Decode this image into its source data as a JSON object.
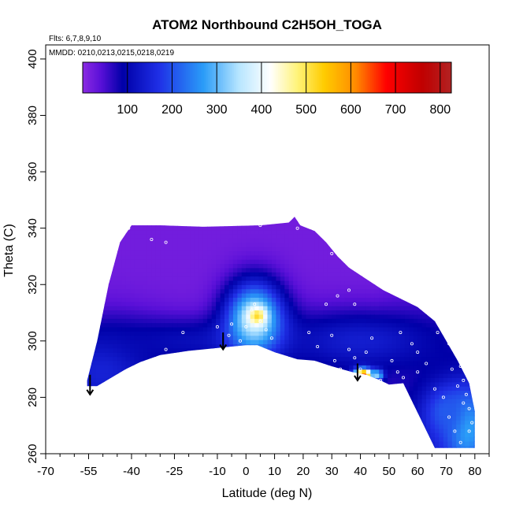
{
  "chart_data": {
    "type": "heatmap",
    "title": "ATOM2 Northbound C2H5OH_TOGA",
    "annotations": {
      "flights": "Flts: 6,7,8,9,10",
      "dates": "MMDD: 0210,0213,0215,0218,0219"
    },
    "xlabel": "Latitude (deg N)",
    "ylabel": "Theta (C)",
    "xlim": [
      -70,
      85
    ],
    "ylim": [
      260,
      405
    ],
    "x_ticks": [
      -70,
      -55,
      -40,
      -25,
      -10,
      0,
      10,
      20,
      30,
      40,
      50,
      60,
      70,
      80
    ],
    "x_tick_labels": [
      "-70",
      "-55",
      "-40",
      "-25",
      "-10",
      "0",
      "10",
      "20",
      "30",
      "40",
      "50",
      "60",
      "70",
      "80"
    ],
    "x_minor_ticks": [
      -65,
      -60,
      -50,
      -45,
      -35,
      -30,
      -20,
      -15,
      -5,
      5,
      15,
      25,
      35,
      45,
      55,
      65,
      75,
      85
    ],
    "y_ticks": [
      260,
      280,
      300,
      320,
      340,
      360,
      380,
      400
    ],
    "y_tick_labels": [
      "260",
      "280",
      "300",
      "320",
      "340",
      "360",
      "380",
      "400"
    ],
    "colorbar": {
      "ticks": [
        100,
        200,
        300,
        400,
        500,
        600,
        700,
        800
      ],
      "tick_labels": [
        "100",
        "200",
        "300",
        "400",
        "500",
        "600",
        "700",
        "800"
      ],
      "range": [
        0,
        825
      ],
      "stops": [
        {
          "v": 0,
          "c": "#8a2be2"
        },
        {
          "v": 40,
          "c": "#5a10d8"
        },
        {
          "v": 90,
          "c": "#0000a8"
        },
        {
          "v": 170,
          "c": "#1f2fe6"
        },
        {
          "v": 270,
          "c": "#2a9cf8"
        },
        {
          "v": 350,
          "c": "#b8e6ff"
        },
        {
          "v": 420,
          "c": "#ffffff"
        },
        {
          "v": 480,
          "c": "#fff37a"
        },
        {
          "v": 540,
          "c": "#ffcc00"
        },
        {
          "v": 610,
          "c": "#ff8c00"
        },
        {
          "v": 680,
          "c": "#ff0000"
        },
        {
          "v": 760,
          "c": "#c00000"
        },
        {
          "v": 825,
          "c": "#b22222"
        }
      ]
    },
    "data_region_outline": [
      [
        -55.5,
        284
      ],
      [
        -52,
        284
      ],
      [
        -47,
        287
      ],
      [
        -42,
        290
      ],
      [
        -37,
        292.5
      ],
      [
        -30,
        295
      ],
      [
        -20,
        296.5
      ],
      [
        -10,
        297.5
      ],
      [
        0,
        298.5
      ],
      [
        4,
        298.5
      ],
      [
        10,
        296
      ],
      [
        18,
        293.5
      ],
      [
        24,
        293
      ],
      [
        30,
        291
      ],
      [
        37,
        289
      ],
      [
        42,
        288
      ],
      [
        47,
        286
      ],
      [
        50,
        284.5
      ],
      [
        55,
        285
      ],
      [
        66,
        262
      ],
      [
        72,
        262
      ],
      [
        80,
        262
      ],
      [
        80,
        275
      ],
      [
        78,
        285
      ],
      [
        74,
        293
      ],
      [
        70,
        300
      ],
      [
        66,
        307
      ],
      [
        60,
        312
      ],
      [
        54,
        315
      ],
      [
        48,
        318
      ],
      [
        42,
        322
      ],
      [
        36,
        326
      ],
      [
        32,
        330
      ],
      [
        28,
        335
      ],
      [
        24,
        339
      ],
      [
        19,
        341
      ],
      [
        17,
        344
      ],
      [
        15,
        342
      ],
      [
        5,
        341
      ],
      [
        -15,
        340.5
      ],
      [
        -30,
        341
      ],
      [
        -40,
        341
      ],
      [
        -42,
        338
      ],
      [
        -44,
        335
      ],
      [
        -48,
        320
      ],
      [
        -52,
        300
      ],
      [
        -55.5,
        286
      ]
    ],
    "field": [
      {
        "lat": 0,
        "theta": 322,
        "value": 20,
        "sx": 60,
        "sy": 25
      },
      {
        "lat": -50,
        "theta": 290,
        "value": 150,
        "sx": 14,
        "sy": 12
      },
      {
        "lat": -20,
        "theta": 300,
        "value": 110,
        "sx": 22,
        "sy": 6
      },
      {
        "lat": 40,
        "theta": 300,
        "value": 140,
        "sx": 22,
        "sy": 8
      },
      {
        "lat": 3,
        "theta": 308,
        "value": 380,
        "sx": 7,
        "sy": 9
      },
      {
        "lat": 4,
        "theta": 309,
        "value": 520,
        "sx": 2,
        "sy": 2
      },
      {
        "lat": 41,
        "theta": 288,
        "value": 700,
        "sx": 2.2,
        "sy": 1.6
      },
      {
        "lat": 46,
        "theta": 288,
        "value": 330,
        "sx": 1.5,
        "sy": 1.4
      },
      {
        "lat": 77,
        "theta": 270,
        "value": 300,
        "sx": 5,
        "sy": 9
      },
      {
        "lat": 70,
        "theta": 275,
        "value": 210,
        "sx": 6,
        "sy": 7
      }
    ],
    "arrows": [
      {
        "lat": -54.5,
        "theta_top": 288,
        "theta_bottom": 281
      },
      {
        "lat": -8,
        "theta_top": 303,
        "theta_bottom": 297
      },
      {
        "lat": 39,
        "theta_top": 292,
        "theta_bottom": 286
      }
    ],
    "sample_points": [
      [
        -43,
        341
      ],
      [
        -41,
        340
      ],
      [
        -45,
        337
      ],
      [
        -33,
        336
      ],
      [
        -28,
        335
      ],
      [
        -28,
        297
      ],
      [
        -22,
        303
      ],
      [
        -10,
        305
      ],
      [
        -6,
        302
      ],
      [
        -5,
        306
      ],
      [
        -2,
        300
      ],
      [
        0,
        305
      ],
      [
        2,
        311
      ],
      [
        3,
        313
      ],
      [
        5,
        307
      ],
      [
        7,
        304
      ],
      [
        9,
        301
      ],
      [
        5,
        341
      ],
      [
        18,
        340
      ],
      [
        19,
        342
      ],
      [
        23,
        341
      ],
      [
        0,
        342
      ],
      [
        30,
        331
      ],
      [
        35,
        336
      ],
      [
        38,
        328
      ],
      [
        36,
        318
      ],
      [
        38,
        313
      ],
      [
        45,
        337
      ],
      [
        32,
        316
      ],
      [
        28,
        313
      ],
      [
        30,
        302
      ],
      [
        36,
        297
      ],
      [
        38,
        294
      ],
      [
        42,
        296
      ],
      [
        44,
        301
      ],
      [
        22,
        303
      ],
      [
        25,
        298
      ],
      [
        31,
        293
      ],
      [
        33,
        290
      ],
      [
        40,
        290
      ],
      [
        47,
        286
      ],
      [
        51,
        293
      ],
      [
        53,
        289
      ],
      [
        55,
        287
      ],
      [
        54,
        303
      ],
      [
        58,
        299
      ],
      [
        60,
        296
      ],
      [
        60,
        289
      ],
      [
        63,
        292
      ],
      [
        67,
        303
      ],
      [
        69,
        310
      ],
      [
        70,
        306
      ],
      [
        71,
        299
      ],
      [
        72,
        290
      ],
      [
        74,
        297
      ],
      [
        75,
        291
      ],
      [
        76,
        286
      ],
      [
        77,
        281
      ],
      [
        78,
        276
      ],
      [
        79,
        271
      ],
      [
        74,
        284
      ],
      [
        76,
        278
      ],
      [
        78,
        268
      ],
      [
        66,
        283
      ],
      [
        69,
        280
      ],
      [
        71,
        273
      ],
      [
        73,
        268
      ],
      [
        75,
        264
      ]
    ]
  }
}
